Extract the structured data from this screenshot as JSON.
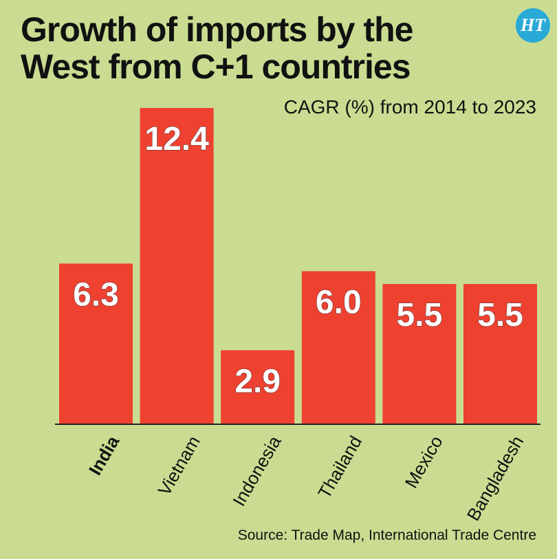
{
  "header": {
    "title_line1": "Growth of imports by the",
    "title_line2": "West from C+1 countries",
    "logo_text": "HT"
  },
  "chart_data": {
    "type": "bar",
    "subtitle": "CAGR (%) from 2014 to 2023",
    "categories": [
      "India",
      "Vietnam",
      "Indonesia",
      "Thailand",
      "Mexico",
      "Bangladesh"
    ],
    "values": [
      6.3,
      12.4,
      2.9,
      6.0,
      5.5,
      5.5
    ],
    "value_labels": [
      "6.3",
      "12.4",
      "2.9",
      "6.0",
      "5.5",
      "5.5"
    ],
    "highlight_category": "India",
    "bar_color": "#ef4130",
    "background_color": "#c9dc91",
    "value_label_color": "#ffffff",
    "ylim": [
      0,
      12.4
    ],
    "grid": false,
    "legend": "none"
  },
  "footer": {
    "source": "Source: Trade Map, International Trade Centre"
  }
}
